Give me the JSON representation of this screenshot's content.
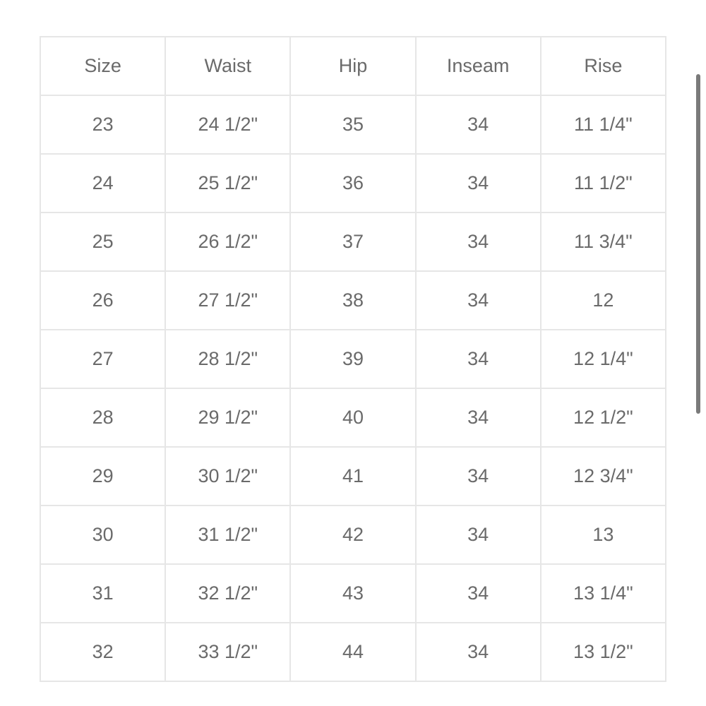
{
  "table": {
    "headers": [
      "Size",
      "Waist",
      "Hip",
      "Inseam",
      "Rise"
    ],
    "rows": [
      [
        "23",
        "24 1/2\"",
        "35",
        "34",
        "11 1/4\""
      ],
      [
        "24",
        "25 1/2\"",
        "36",
        "34",
        "11 1/2\""
      ],
      [
        "25",
        "26 1/2\"",
        "37",
        "34",
        "11 3/4\""
      ],
      [
        "26",
        "27 1/2\"",
        "38",
        "34",
        "12"
      ],
      [
        "27",
        "28 1/2\"",
        "39",
        "34",
        "12 1/4\""
      ],
      [
        "28",
        "29 1/2\"",
        "40",
        "34",
        "12 1/2\""
      ],
      [
        "29",
        "30 1/2\"",
        "41",
        "34",
        "12 3/4\""
      ],
      [
        "30",
        "31 1/2\"",
        "42",
        "34",
        "13"
      ],
      [
        "31",
        "32 1/2\"",
        "43",
        "34",
        "13 1/4\""
      ],
      [
        "32",
        "33 1/2\"",
        "44",
        "34",
        "13 1/2\""
      ]
    ]
  },
  "colors": {
    "text": "#6a6a6a",
    "border": "#e6e6e6",
    "scrollbar": "#7a7a7a"
  }
}
